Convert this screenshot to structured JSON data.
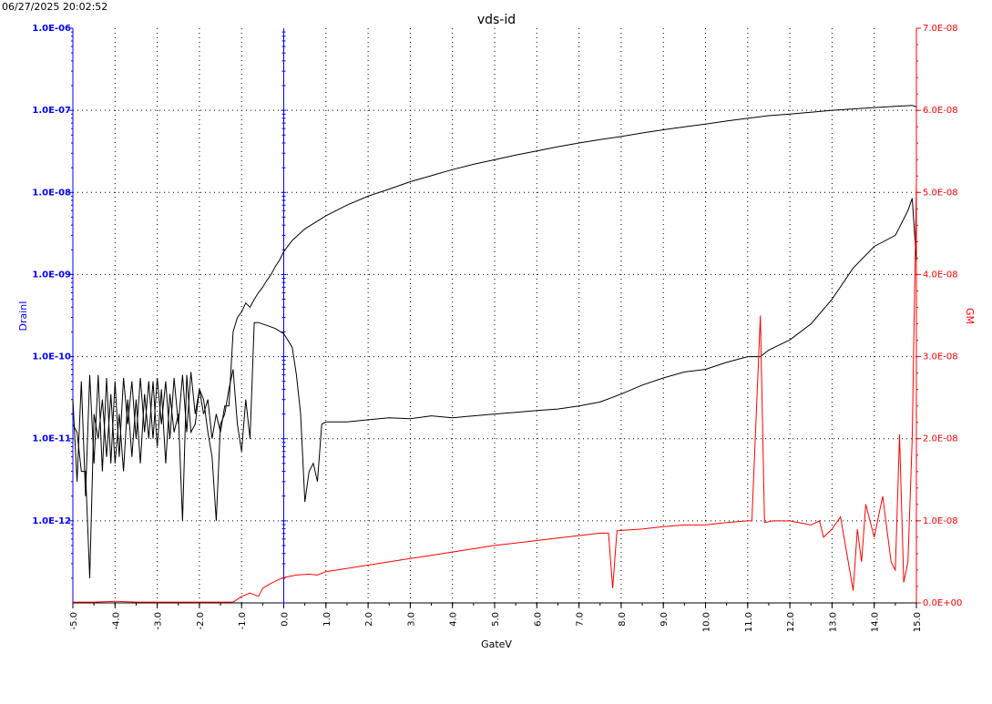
{
  "header": {
    "timestamp": "06/27/2025 20:02:52"
  },
  "colors": {
    "left_axis": "#0000ff",
    "right_axis": "#ff0000",
    "id_curves": "#000000",
    "gm_curve": "#ff0000",
    "grid": "#000000"
  },
  "chart_data": {
    "type": "line",
    "title": "vds-id",
    "xlabel": "GateV",
    "ylabel_left": "DrainI",
    "ylabel_right": "GM",
    "xlim": [
      -5.0,
      15.0
    ],
    "ylim_left": [
      1e-13,
      1e-06
    ],
    "yscale_left": "log",
    "ylim_right": [
      0.0,
      7e-08
    ],
    "yscale_right": "linear",
    "grid": true,
    "x_tick_labels": [
      "-5.0",
      "-4.0",
      "-3.0",
      "-2.0",
      "-1.0",
      "0.0",
      "1.0",
      "2.0",
      "3.0",
      "4.0",
      "5.0",
      "6.0",
      "7.0",
      "8.0",
      "9.0",
      "10.0",
      "11.0",
      "12.0",
      "13.0",
      "14.0",
      "15.0"
    ],
    "y_left_tick_labels": [
      "1.0E-06",
      "1.0E-07",
      "1.0E-08",
      "1.0E-09",
      "1.0E-10",
      "1.0E-11",
      "1.0E-12"
    ],
    "y_right_tick_labels": [
      "7.0E-08",
      "6.0E-08",
      "5.0E-08",
      "4.0E-08",
      "3.0E-08",
      "2.0E-08",
      "1.0E-08",
      "0.0E+00"
    ],
    "vertical_marker_x": 0.0,
    "series": [
      {
        "axis": "left",
        "points": [
          [
            -5.0,
            3e-11
          ],
          [
            -4.9,
            3e-12
          ],
          [
            -4.8,
            5e-11
          ],
          [
            -4.7,
            2e-12
          ],
          [
            -4.6,
            6e-11
          ],
          [
            -4.5,
            5e-12
          ],
          [
            -4.4,
            6e-11
          ],
          [
            -4.3,
            4e-12
          ],
          [
            -4.2,
            5.5e-11
          ],
          [
            -4.1,
            5e-12
          ],
          [
            -4.0,
            5e-11
          ],
          [
            -3.9,
            6e-12
          ],
          [
            -3.8,
            5.5e-11
          ],
          [
            -3.7,
            1.5e-11
          ],
          [
            -3.6,
            5e-11
          ],
          [
            -3.5,
            1e-11
          ],
          [
            -3.4,
            5.5e-11
          ],
          [
            -3.3,
            1.2e-11
          ],
          [
            -3.2,
            5e-11
          ],
          [
            -3.1,
            1e-11
          ],
          [
            -3.0,
            5.5e-11
          ],
          [
            -2.9,
            1.5e-11
          ],
          [
            -2.8,
            5e-11
          ],
          [
            -2.7,
            1e-11
          ],
          [
            -2.6,
            5.5e-11
          ],
          [
            -2.5,
            1.5e-11
          ],
          [
            -2.4,
            6e-11
          ],
          [
            -2.3,
            1.2e-11
          ],
          [
            -2.2,
            6.5e-11
          ],
          [
            -2.1,
            2e-11
          ],
          [
            -2.0,
            4e-11
          ],
          [
            -1.9,
            2e-11
          ],
          [
            -1.8,
            3e-11
          ],
          [
            -1.7,
            1e-11
          ],
          [
            -1.6,
            2e-11
          ],
          [
            -1.5,
            1.2e-11
          ],
          [
            -1.4,
            2.5e-11
          ],
          [
            -1.3,
            2.5e-11
          ],
          [
            -1.2,
            2e-10
          ],
          [
            -1.1,
            3e-10
          ],
          [
            -1.0,
            3.5e-10
          ],
          [
            -0.9,
            4.5e-10
          ],
          [
            -0.8,
            4e-10
          ],
          [
            -0.7,
            5e-10
          ],
          [
            -0.6,
            6e-10
          ],
          [
            -0.5,
            7e-10
          ],
          [
            -0.4,
            8.5e-10
          ],
          [
            -0.3,
            1e-09
          ],
          [
            -0.2,
            1.25e-09
          ],
          [
            -0.1,
            1.5e-09
          ],
          [
            0.0,
            1.9e-09
          ],
          [
            0.2,
            2.6e-09
          ],
          [
            0.5,
            3.6e-09
          ],
          [
            1.0,
            5.2e-09
          ],
          [
            1.5,
            7e-09
          ],
          [
            2.0,
            9e-09
          ],
          [
            2.5,
            1.1e-08
          ],
          [
            3.0,
            1.35e-08
          ],
          [
            3.5,
            1.6e-08
          ],
          [
            4.0,
            1.9e-08
          ],
          [
            4.5,
            2.2e-08
          ],
          [
            5.0,
            2.5e-08
          ],
          [
            5.5,
            2.85e-08
          ],
          [
            6.0,
            3.2e-08
          ],
          [
            6.5,
            3.6e-08
          ],
          [
            7.0,
            4e-08
          ],
          [
            7.5,
            4.4e-08
          ],
          [
            8.0,
            4.8e-08
          ],
          [
            8.5,
            5.3e-08
          ],
          [
            9.0,
            5.8e-08
          ],
          [
            9.5,
            6.3e-08
          ],
          [
            10.0,
            6.8e-08
          ],
          [
            10.5,
            7.4e-08
          ],
          [
            11.0,
            8e-08
          ],
          [
            11.5,
            8.6e-08
          ],
          [
            12.0,
            9e-08
          ],
          [
            12.5,
            9.5e-08
          ],
          [
            13.0,
            1e-07
          ],
          [
            13.5,
            1.04e-07
          ],
          [
            14.0,
            1.08e-07
          ],
          [
            14.5,
            1.12e-07
          ],
          [
            14.9,
            1.15e-07
          ],
          [
            15.0,
            1.1e-07
          ]
        ]
      },
      {
        "axis": "left",
        "points": [
          [
            -5.0,
            1.5e-11
          ],
          [
            -4.9,
            1.2e-11
          ],
          [
            -4.8,
            4e-12
          ],
          [
            -4.7,
            4e-12
          ],
          [
            -4.6,
            2e-13
          ],
          [
            -4.5,
            2e-11
          ],
          [
            -4.4,
            1e-11
          ],
          [
            -4.3,
            3e-11
          ],
          [
            -4.2,
            6e-12
          ],
          [
            -4.1,
            3.5e-11
          ],
          [
            -4.0,
            5e-12
          ],
          [
            -3.9,
            2e-11
          ],
          [
            -3.8,
            4e-12
          ],
          [
            -3.7,
            3e-11
          ],
          [
            -3.6,
            6e-12
          ],
          [
            -3.5,
            3e-11
          ],
          [
            -3.4,
            5e-12
          ],
          [
            -3.3,
            3.5e-11
          ],
          [
            -3.2,
            1e-11
          ],
          [
            -3.1,
            5e-11
          ],
          [
            -3.0,
            8e-12
          ],
          [
            -2.9,
            4e-11
          ],
          [
            -2.8,
            5e-12
          ],
          [
            -2.7,
            3.5e-11
          ],
          [
            -2.6,
            1.2e-11
          ],
          [
            -2.5,
            2e-11
          ],
          [
            -2.4,
            1e-12
          ],
          [
            -2.3,
            6e-11
          ],
          [
            -2.2,
            1.2e-11
          ],
          [
            -2.1,
            1.5e-11
          ],
          [
            -2.0,
            4e-11
          ],
          [
            -1.9,
            3e-11
          ],
          [
            -1.8,
            1.2e-11
          ],
          [
            -1.7,
            6e-12
          ],
          [
            -1.6,
            1e-12
          ],
          [
            -1.5,
            1.5e-11
          ],
          [
            -1.4,
            2e-11
          ],
          [
            -1.3,
            4e-11
          ],
          [
            -1.2,
            7e-11
          ],
          [
            -1.1,
            1.5e-11
          ],
          [
            -1.0,
            7e-12
          ],
          [
            -0.9,
            3e-11
          ],
          [
            -0.8,
            1e-11
          ],
          [
            -0.7,
            2.6e-10
          ],
          [
            -0.6,
            2.6e-10
          ],
          [
            -0.4,
            2.4e-10
          ],
          [
            -0.2,
            2.2e-10
          ],
          [
            0.0,
            1.9e-10
          ],
          [
            0.2,
            1.3e-10
          ],
          [
            0.3,
            6e-11
          ],
          [
            0.4,
            2e-11
          ],
          [
            0.5,
            1.7e-12
          ],
          [
            0.6,
            4e-12
          ],
          [
            0.7,
            5e-12
          ],
          [
            0.8,
            3e-12
          ],
          [
            0.9,
            1.5e-11
          ],
          [
            1.0,
            1.6e-11
          ],
          [
            1.5,
            1.6e-11
          ],
          [
            2.0,
            1.7e-11
          ],
          [
            2.5,
            1.8e-11
          ],
          [
            3.0,
            1.75e-11
          ],
          [
            3.5,
            1.9e-11
          ],
          [
            4.0,
            1.8e-11
          ],
          [
            4.5,
            1.9e-11
          ],
          [
            5.0,
            2e-11
          ],
          [
            5.5,
            2.1e-11
          ],
          [
            6.0,
            2.2e-11
          ],
          [
            6.5,
            2.3e-11
          ],
          [
            7.0,
            2.5e-11
          ],
          [
            7.5,
            2.8e-11
          ],
          [
            8.0,
            3.5e-11
          ],
          [
            8.5,
            4.5e-11
          ],
          [
            9.0,
            5.5e-11
          ],
          [
            9.5,
            6.5e-11
          ],
          [
            10.0,
            7e-11
          ],
          [
            10.5,
            8.5e-11
          ],
          [
            11.0,
            1e-10
          ],
          [
            11.3,
            1e-10
          ],
          [
            11.5,
            1.2e-10
          ],
          [
            12.0,
            1.6e-10
          ],
          [
            12.5,
            2.5e-10
          ],
          [
            13.0,
            5e-10
          ],
          [
            13.5,
            1.2e-09
          ],
          [
            14.0,
            2.2e-09
          ],
          [
            14.5,
            3e-09
          ],
          [
            14.8,
            6e-09
          ],
          [
            14.9,
            8.5e-09
          ],
          [
            15.0,
            1.5e-09
          ]
        ]
      },
      {
        "axis": "right",
        "points": [
          [
            -5.0,
            1e-10
          ],
          [
            -4.5,
            1e-10
          ],
          [
            -4.0,
            2e-10
          ],
          [
            -3.5,
            1e-10
          ],
          [
            -3.0,
            1e-10
          ],
          [
            -2.5,
            1e-10
          ],
          [
            -2.0,
            1e-10
          ],
          [
            -1.5,
            1e-10
          ],
          [
            -1.2,
            1e-10
          ],
          [
            -1.0,
            8e-10
          ],
          [
            -0.8,
            1.2e-09
          ],
          [
            -0.6,
            8e-10
          ],
          [
            -0.5,
            1.8e-09
          ],
          [
            -0.3,
            2.4e-09
          ],
          [
            -0.1,
            2.9e-09
          ],
          [
            0.0,
            3.1e-09
          ],
          [
            0.3,
            3.4e-09
          ],
          [
            0.6,
            3.5e-09
          ],
          [
            0.8,
            3.4e-09
          ],
          [
            1.0,
            3.8e-09
          ],
          [
            1.5,
            4.2e-09
          ],
          [
            2.0,
            4.6e-09
          ],
          [
            2.5,
            5e-09
          ],
          [
            3.0,
            5.4e-09
          ],
          [
            3.5,
            5.8e-09
          ],
          [
            4.0,
            6.2e-09
          ],
          [
            4.5,
            6.6e-09
          ],
          [
            5.0,
            7e-09
          ],
          [
            5.5,
            7.3e-09
          ],
          [
            6.0,
            7.6e-09
          ],
          [
            6.5,
            7.9e-09
          ],
          [
            7.0,
            8.2e-09
          ],
          [
            7.5,
            8.5e-09
          ],
          [
            7.7,
            8.5e-09
          ],
          [
            7.8,
            1.8e-09
          ],
          [
            7.9,
            8.8e-09
          ],
          [
            8.5,
            9e-09
          ],
          [
            9.0,
            9.3e-09
          ],
          [
            9.5,
            9.5e-09
          ],
          [
            10.0,
            9.5e-09
          ],
          [
            10.5,
            9.8e-09
          ],
          [
            11.0,
            1e-08
          ],
          [
            11.1,
            1e-08
          ],
          [
            11.3,
            3.5e-08
          ],
          [
            11.4,
            9.8e-09
          ],
          [
            11.6,
            1e-08
          ],
          [
            12.0,
            1e-08
          ],
          [
            12.5,
            9.5e-09
          ],
          [
            12.7,
            1e-08
          ],
          [
            12.8,
            8e-09
          ],
          [
            13.0,
            9e-09
          ],
          [
            13.2,
            1.05e-08
          ],
          [
            13.5,
            1.5e-09
          ],
          [
            13.6,
            9e-09
          ],
          [
            13.7,
            5e-09
          ],
          [
            13.8,
            1.2e-08
          ],
          [
            14.0,
            8e-09
          ],
          [
            14.2,
            1.3e-08
          ],
          [
            14.4,
            5e-09
          ],
          [
            14.5,
            4e-09
          ],
          [
            14.6,
            2.05e-08
          ],
          [
            14.7,
            2.5e-09
          ],
          [
            14.8,
            5e-09
          ],
          [
            14.9,
            2e-08
          ],
          [
            15.0,
            5.1e-08
          ]
        ]
      }
    ]
  }
}
